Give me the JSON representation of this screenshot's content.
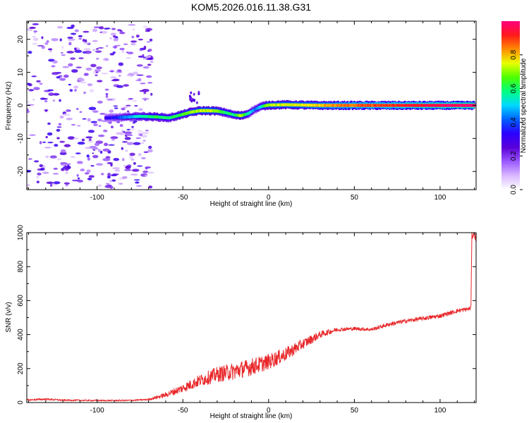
{
  "page": {
    "title": "KOM5.2026.016.11.38.G31"
  },
  "chart_data": [
    {
      "type": "heatmap",
      "title": "KOM5.2026.016.11.38.G31",
      "xlabel": "Height of straight line (km)",
      "ylabel": "Frequency (Hz)",
      "xlim": [
        -141,
        121
      ],
      "ylim": [
        -25.5,
        25.5
      ],
      "xticks": [
        -100,
        -50,
        0,
        50,
        100
      ],
      "xtick_labels": [
        "-100",
        "-50",
        "0",
        "50",
        "100"
      ],
      "yticks": [
        -20,
        -10,
        0,
        10,
        20
      ],
      "ytick_labels": [
        "-20",
        "-10",
        "0",
        "10",
        "20"
      ],
      "colorbar": {
        "label": "Normalized spectral amplitude",
        "range": [
          0,
          1
        ],
        "ticks": [
          0.0,
          0.2,
          0.4,
          0.6,
          0.8
        ],
        "tick_labels": [
          "0.0",
          "0.2",
          "0.4",
          "0.6",
          "0.8"
        ],
        "colormap": [
          "#ffffff",
          "#d9b8ff",
          "#9b59ff",
          "#5a00d8",
          "#2b00ff",
          "#0060ff",
          "#00d8ff",
          "#00ff80",
          "#4cff00",
          "#e8ff00",
          "#ff8c00",
          "#ff1a1a",
          "#ff007f"
        ]
      },
      "ridge": {
        "description": "dominant frequency versus height",
        "x": [
          -95,
          -85,
          -75,
          -65,
          -58,
          -52,
          -45,
          -40,
          -35,
          -30,
          -25,
          -20,
          -16,
          -12,
          -8,
          -4,
          0,
          10,
          20,
          30,
          40,
          50,
          60,
          70,
          80,
          90,
          100,
          110,
          120
        ],
        "freq": [
          -3.8,
          -3.6,
          -3.3,
          -3.5,
          -3.8,
          -3.0,
          -2.0,
          -1.6,
          -1.6,
          -1.7,
          -2.2,
          -2.9,
          -3.1,
          -2.5,
          -1.2,
          -0.3,
          0.1,
          0.2,
          0.1,
          0.0,
          0.0,
          0.0,
          0.0,
          0.0,
          0.0,
          0.0,
          0.0,
          0.0,
          0.0
        ],
        "amplitude": [
          0.3,
          0.42,
          0.55,
          0.62,
          0.58,
          0.62,
          0.7,
          0.72,
          0.75,
          0.7,
          0.6,
          0.58,
          0.72,
          0.55,
          0.42,
          0.55,
          0.72,
          0.74,
          0.76,
          0.8,
          0.84,
          0.86,
          0.88,
          0.9,
          0.93,
          0.95,
          0.96,
          0.98,
          1.0
        ]
      },
      "noise": {
        "x_range": [
          -141,
          -68
        ],
        "freq_range": [
          -25,
          25
        ],
        "amplitude_range": [
          0.02,
          0.15
        ]
      }
    },
    {
      "type": "line",
      "title": "",
      "xlabel": "Height of straight line (km)",
      "ylabel": "SNR (v/v)",
      "xlim": [
        -141,
        121
      ],
      "ylim": [
        0,
        1000
      ],
      "xticks": [
        -100,
        -50,
        0,
        50,
        100
      ],
      "xtick_labels": [
        "-100",
        "-50",
        "0",
        "50",
        "100"
      ],
      "yticks": [
        0,
        200,
        400,
        600,
        800,
        1000
      ],
      "ytick_labels": [
        "0",
        "200",
        "400",
        "600",
        "800",
        "1000"
      ],
      "color": "#e8282b",
      "series": [
        {
          "name": "SNR",
          "x": [
            -141,
            -130,
            -120,
            -110,
            -100,
            -90,
            -80,
            -70,
            -60,
            -50,
            -40,
            -30,
            -20,
            -10,
            0,
            10,
            20,
            30,
            40,
            50,
            60,
            70,
            80,
            90,
            100,
            110,
            116,
            118,
            118.5,
            120,
            121
          ],
          "y": [
            15,
            20,
            14,
            13,
            12,
            12,
            13,
            18,
            45,
            85,
            130,
            165,
            185,
            210,
            240,
            285,
            345,
            400,
            430,
            435,
            430,
            460,
            480,
            495,
            510,
            540,
            550,
            555,
            980,
            1000,
            960
          ],
          "noise_amplitude": [
            5,
            6,
            5,
            4,
            4,
            4,
            4,
            5,
            15,
            25,
            35,
            45,
            50,
            50,
            45,
            40,
            30,
            20,
            12,
            10,
            10,
            12,
            12,
            12,
            12,
            12,
            12,
            12,
            20,
            25,
            25
          ]
        }
      ]
    }
  ]
}
